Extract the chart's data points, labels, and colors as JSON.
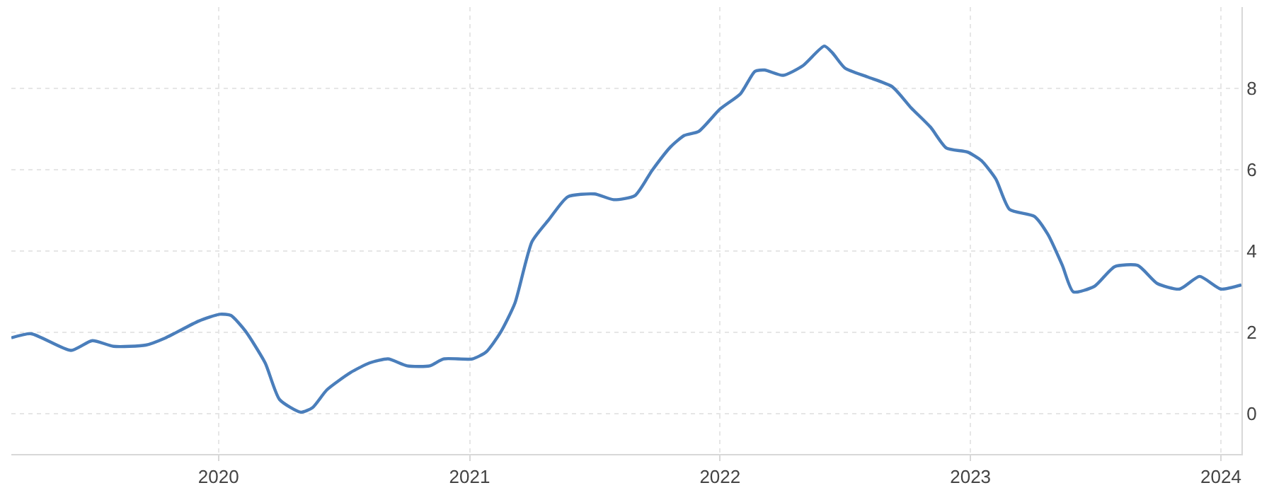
{
  "chart_data": {
    "type": "line",
    "x": [
      "2019-03-05",
      "2019-04-03",
      "2019-05-31",
      "2019-07-01",
      "2019-08-01",
      "2019-09-17",
      "2019-10-16",
      "2019-12-03",
      "2020-01-03",
      "2020-01-19",
      "2020-02-09",
      "2020-03-09",
      "2020-03-30",
      "2020-04-30",
      "2020-05-17",
      "2020-06-07",
      "2020-07-11",
      "2020-08-08",
      "2020-09-04",
      "2020-10-02",
      "2020-11-04",
      "2020-11-24",
      "2021-01-05",
      "2021-01-25",
      "2021-02-15",
      "2021-03-08",
      "2021-04-02",
      "2021-04-27",
      "2021-05-24",
      "2021-07-02",
      "2021-07-30",
      "2021-08-30",
      "2021-09-24",
      "2021-10-21",
      "2021-11-10",
      "2021-12-01",
      "2022-01-01",
      "2022-01-31",
      "2022-02-21",
      "2022-03-07",
      "2022-04-03",
      "2022-05-02",
      "2022-06-02",
      "2022-06-14",
      "2022-07-02",
      "2022-08-04",
      "2022-09-09",
      "2022-10-06",
      "2022-11-04",
      "2022-11-27",
      "2022-12-28",
      "2023-01-17",
      "2023-02-07",
      "2023-02-27",
      "2023-04-04",
      "2023-04-24",
      "2023-05-15",
      "2023-05-31",
      "2023-07-01",
      "2023-07-30",
      "2023-09-02",
      "2023-09-30",
      "2023-11-02",
      "2023-12-01",
      "2024-01-01",
      "2024-01-31"
    ],
    "series": [
      {
        "color": "#4a7ebb",
        "values": [
          1.86,
          1.96,
          1.55,
          1.79,
          1.65,
          1.68,
          1.86,
          2.27,
          2.44,
          2.41,
          2.03,
          1.24,
          0.34,
          0.03,
          0.14,
          0.58,
          1.0,
          1.24,
          1.34,
          1.17,
          1.17,
          1.34,
          1.34,
          1.51,
          1.99,
          2.71,
          4.23,
          4.78,
          5.33,
          5.4,
          5.26,
          5.36,
          5.98,
          6.56,
          6.84,
          6.94,
          7.49,
          7.87,
          8.42,
          8.45,
          8.32,
          8.56,
          9.04,
          8.87,
          8.5,
          8.28,
          8.04,
          7.53,
          7.04,
          6.53,
          6.43,
          6.22,
          5.77,
          5.02,
          4.85,
          4.4,
          3.64,
          2.99,
          3.13,
          3.61,
          3.64,
          3.2,
          3.06,
          3.37,
          3.06,
          3.16
        ]
      }
    ],
    "xlim": [
      "2019-03-05",
      "2024-01-31"
    ],
    "xticks": [
      "2020",
      "2021",
      "2022",
      "2023",
      "2024"
    ],
    "ylim": [
      -1,
      10
    ],
    "yticks": [
      0,
      2,
      4,
      6,
      8
    ],
    "grid": true,
    "marker": "none",
    "line_style": "solid"
  }
}
